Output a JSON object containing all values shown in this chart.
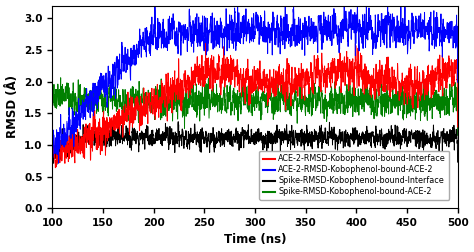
{
  "title": "",
  "xlabel": "Time (ns)",
  "ylabel": "RMSD (Å)",
  "xlim": [
    100,
    500
  ],
  "ylim": [
    0,
    3.2
  ],
  "xticks": [
    100,
    150,
    200,
    250,
    300,
    350,
    400,
    450,
    500
  ],
  "yticks": [
    0,
    0.5,
    1.0,
    1.5,
    2.0,
    2.5,
    3.0
  ],
  "legend": [
    {
      "label": "ACE-2-RMSD-Kobophenol-bound-Interface",
      "color": "#ff0000"
    },
    {
      "label": "ACE-2-RMSD-Kobophenol-bound-ACE-2",
      "color": "#0000ff"
    },
    {
      "label": "Spike-RMSD-Kobophenol-bound-Interface",
      "color": "#000000"
    },
    {
      "label": "Spike-RMSD-Kobophenol-bound-ACE-2",
      "color": "#008000"
    }
  ],
  "legend_loc": "lower right",
  "seed": 42,
  "n_points": 2000,
  "background_color": "#ffffff",
  "figsize": [
    4.74,
    2.52
  ],
  "dpi": 100
}
